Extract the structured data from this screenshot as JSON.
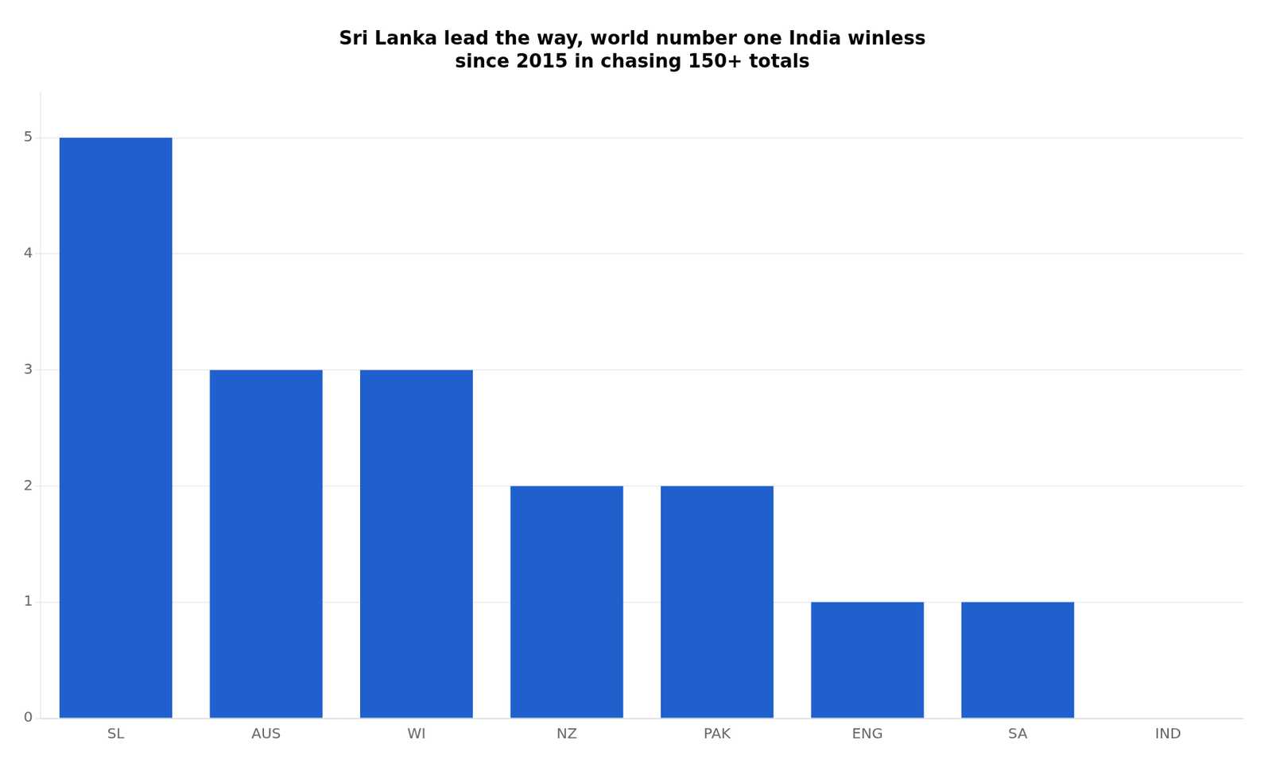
{
  "chart_data": {
    "type": "bar",
    "title": "Sri Lanka lead the way, world number one India winless\nsince 2015 in chasing 150+ totals",
    "categories": [
      "SL",
      "AUS",
      "WI",
      "NZ",
      "PAK",
      "ENG",
      "SA",
      "IND"
    ],
    "values": [
      5,
      3,
      3,
      2,
      2,
      1,
      1,
      0
    ],
    "color": "#2060cc",
    "ylim": [
      0,
      5.4
    ],
    "yticks": [
      0,
      1,
      2,
      3,
      4,
      5
    ],
    "grid": true
  }
}
